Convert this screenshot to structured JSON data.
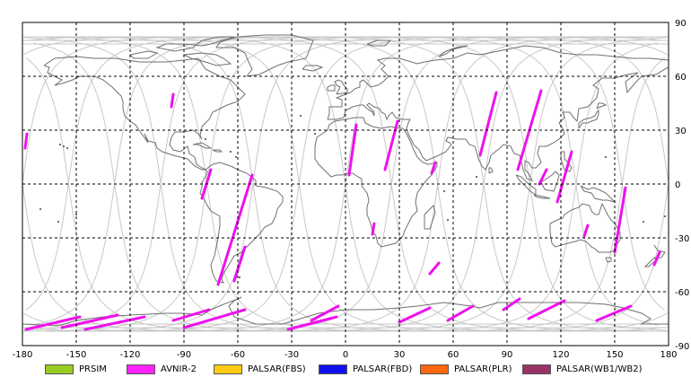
{
  "map": {
    "projection": "equirectangular",
    "lon_range": [
      -180,
      180
    ],
    "lat_range": [
      -90,
      90
    ],
    "grid": true,
    "x_ticks": [
      "-180",
      "-150",
      "-120",
      "-90",
      "-60",
      "-30",
      "0",
      "30",
      "60",
      "90",
      "120",
      "150",
      "180"
    ],
    "y_ticks": [
      "90",
      "60",
      "30",
      "0",
      "-30",
      "-60",
      "-90"
    ],
    "colors": {
      "coastline": "#707070",
      "orbit_track": "#c8c8c8",
      "grid": "#000000",
      "scene": "#ee11ee"
    }
  },
  "legend": [
    {
      "label": "PRSIM",
      "color": "#99cc22"
    },
    {
      "label": "AVNIR-2",
      "color": "#ff22ff"
    },
    {
      "label": "PALSAR(FBS)",
      "color": "#ffcc11"
    },
    {
      "label": "PALSAR(FBD)",
      "color": "#1111ee"
    },
    {
      "label": "PALSAR(PLR)",
      "color": "#ff6611"
    },
    {
      "label": "PALSAR(WB1/WB2)",
      "color": "#993366"
    }
  ],
  "scenes": [
    {
      "lon1": -178.5,
      "lat1": 20,
      "lon2": -177.5,
      "lat2": 28
    },
    {
      "lon1": -97,
      "lat1": 43,
      "lon2": -96,
      "lat2": 50
    },
    {
      "lon1": -80,
      "lat1": -8,
      "lon2": -75,
      "lat2": 8
    },
    {
      "lon1": -71,
      "lat1": -56,
      "lon2": -52,
      "lat2": 5
    },
    {
      "lon1": -62,
      "lat1": -54,
      "lon2": -56,
      "lat2": -35
    },
    {
      "lon1": 2,
      "lat1": 5,
      "lon2": 6,
      "lat2": 33
    },
    {
      "lon1": 15,
      "lat1": -28,
      "lon2": 16,
      "lat2": -22
    },
    {
      "lon1": 22,
      "lat1": 8,
      "lon2": 29,
      "lat2": 35
    },
    {
      "lon1": 47,
      "lat1": -50,
      "lon2": 52,
      "lat2": -44
    },
    {
      "lon1": 48,
      "lat1": 6,
      "lon2": 50,
      "lat2": 12
    },
    {
      "lon1": 75,
      "lat1": 16,
      "lon2": 84,
      "lat2": 51
    },
    {
      "lon1": 96,
      "lat1": 8,
      "lon2": 109,
      "lat2": 52
    },
    {
      "lon1": 108,
      "lat1": 0,
      "lon2": 112,
      "lat2": 8
    },
    {
      "lon1": 118,
      "lat1": -10,
      "lon2": 126,
      "lat2": 18
    },
    {
      "lon1": 133,
      "lat1": -29,
      "lon2": 135,
      "lat2": -23
    },
    {
      "lon1": 150,
      "lat1": -38,
      "lon2": 156,
      "lat2": -2
    },
    {
      "lon1": 172,
      "lat1": -45,
      "lon2": 175,
      "lat2": -38
    },
    {
      "lon1": -178,
      "lat1": -81,
      "lon2": -148,
      "lat2": -74
    },
    {
      "lon1": -158,
      "lat1": -80,
      "lon2": -127,
      "lat2": -73
    },
    {
      "lon1": -145,
      "lat1": -81,
      "lon2": -112,
      "lat2": -74
    },
    {
      "lon1": -96,
      "lat1": -76,
      "lon2": -76,
      "lat2": -70
    },
    {
      "lon1": -90,
      "lat1": -80,
      "lon2": -56,
      "lat2": -70
    },
    {
      "lon1": -32,
      "lat1": -81,
      "lon2": -5,
      "lat2": -74
    },
    {
      "lon1": -19,
      "lat1": -76,
      "lon2": -4,
      "lat2": -68
    },
    {
      "lon1": 30,
      "lat1": -77,
      "lon2": 47,
      "lat2": -69
    },
    {
      "lon1": 57,
      "lat1": -76,
      "lon2": 71,
      "lat2": -68
    },
    {
      "lon1": 88,
      "lat1": -70,
      "lon2": 97,
      "lat2": -64
    },
    {
      "lon1": 102,
      "lat1": -75,
      "lon2": 122,
      "lat2": -65
    },
    {
      "lon1": 140,
      "lat1": -76,
      "lon2": 159,
      "lat2": -68
    }
  ]
}
